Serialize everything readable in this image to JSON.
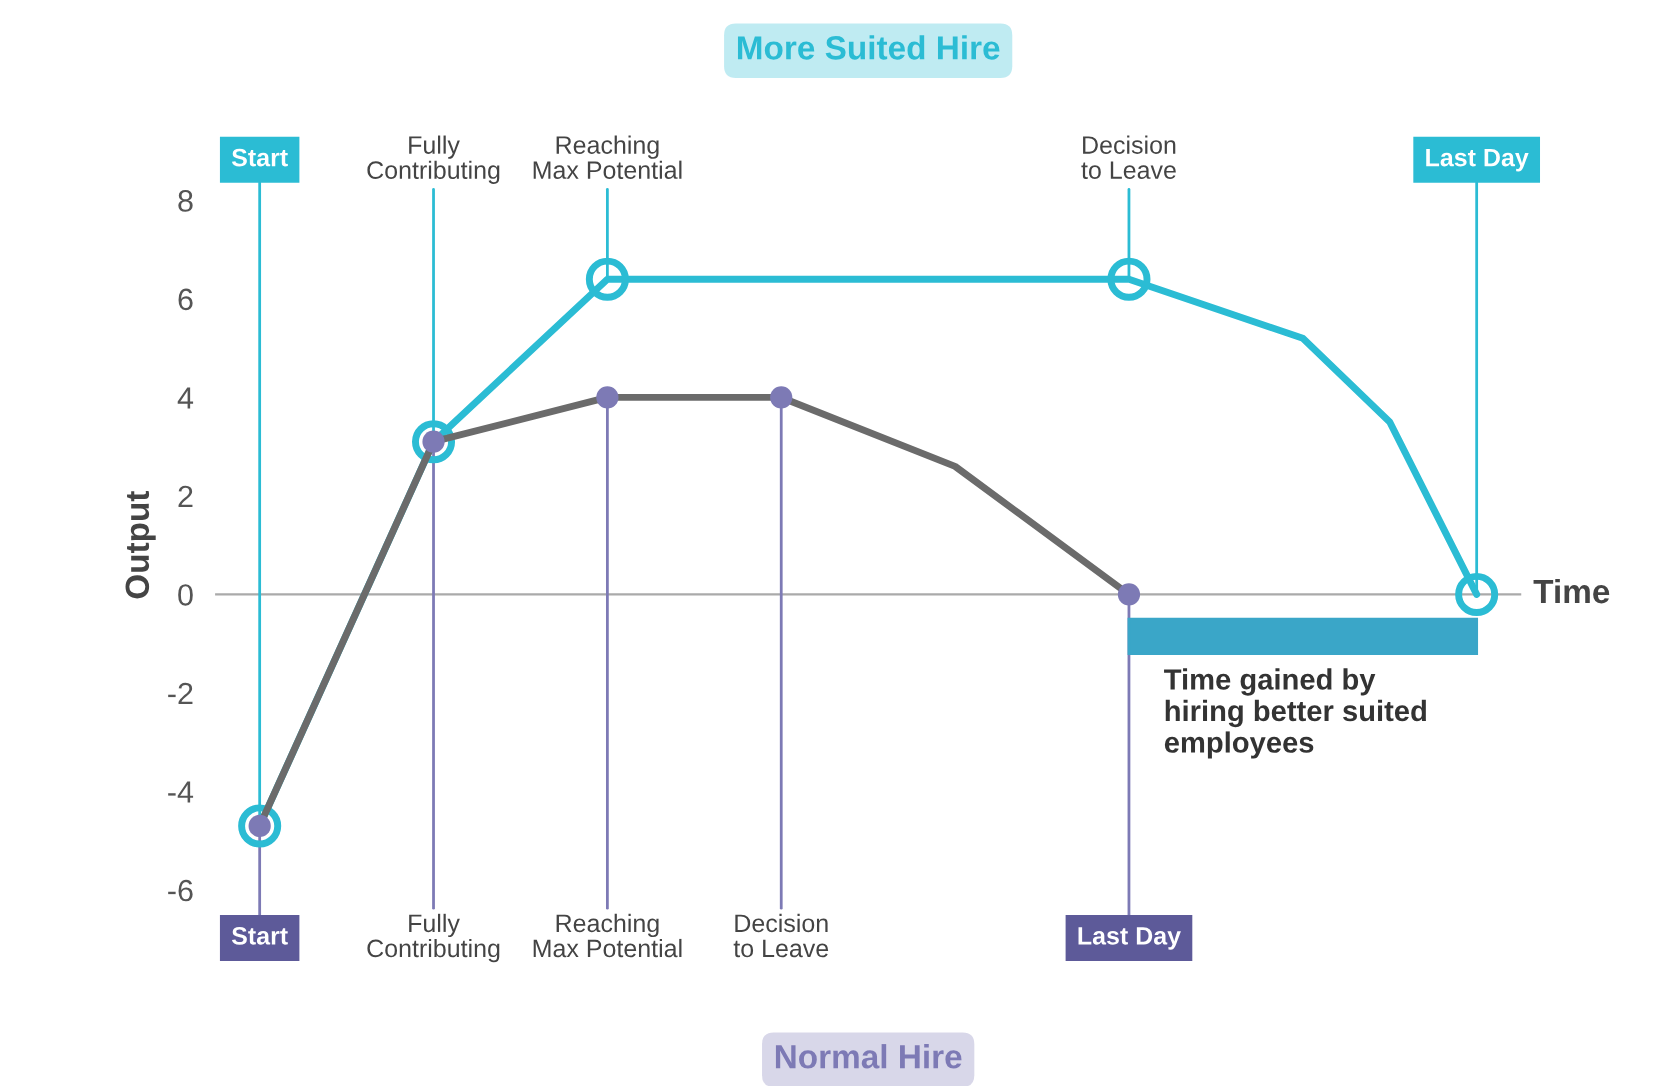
{
  "chart_data": {
    "type": "line",
    "xlabel": "Time",
    "ylabel": "Output",
    "categories": [
      null,
      null,
      null,
      null,
      null,
      null,
      null,
      null,
      null,
      null,
      null,
      null,
      null,
      null,
      null
    ],
    "ylim": [
      -6,
      8
    ],
    "yticks": [
      -6,
      -4,
      -2,
      0,
      2,
      4,
      6,
      8
    ],
    "marker": "circle",
    "series": [
      {
        "name": "More Suited Hire",
        "color": "#2bbcd4",
        "values": [
          -4.7,
          null,
          3.1,
          null,
          6.4,
          null,
          null,
          null,
          null,
          null,
          6.4,
          null,
          5.2,
          3.5,
          0
        ],
        "colors": [
          "#2bbcd4",
          null,
          "#2bbcd4",
          null,
          "#2bbcd4",
          null,
          null,
          null,
          null,
          null,
          "#2bbcd4",
          null,
          null,
          null,
          "#2bbcd4"
        ],
        "value_labels": [
          "Start",
          null,
          "Fully\nContributing",
          null,
          "Reaching\nMax Potential",
          null,
          null,
          null,
          null,
          null,
          "Decision\nto Leave",
          null,
          null,
          null,
          "Last Day"
        ]
      },
      {
        "name": "Normal Hire",
        "color": "#6b6b6b",
        "values": [
          -4.7,
          null,
          3.1,
          null,
          4,
          null,
          4,
          null,
          2.6,
          null,
          0,
          null,
          null,
          null,
          null
        ],
        "colors": [
          "#7d7ab5",
          null,
          "#7d7ab5",
          null,
          "#7d7ab5",
          null,
          "#7d7ab5",
          null,
          null,
          null,
          "#7d7ab5",
          null,
          null,
          null,
          null
        ],
        "value_labels": [
          "Start",
          null,
          "Fully\nContributing",
          null,
          "Reaching\nMax Potential",
          null,
          "Decision\nto Leave",
          null,
          null,
          null,
          "Last Day",
          null,
          null,
          null,
          null
        ]
      }
    ],
    "annotations": [
      "Time gained by\nhiring better suited\nemployees"
    ]
  }
}
